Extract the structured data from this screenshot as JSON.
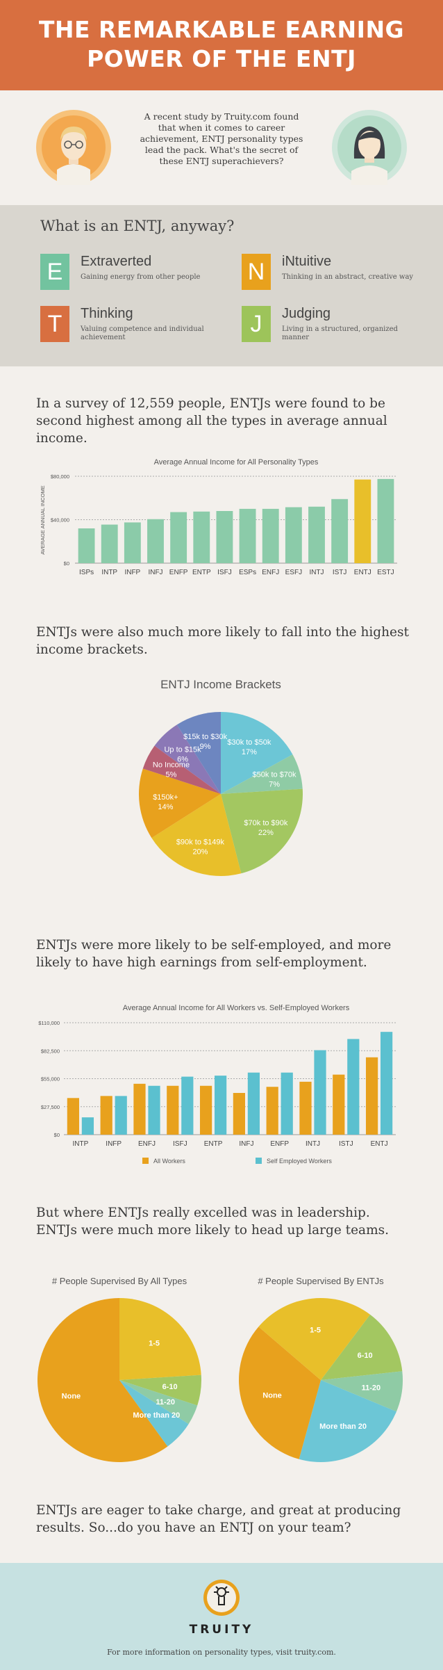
{
  "header": {
    "title": "THE REMARKABLE EARNING\nPOWER OF THE ENTJ"
  },
  "intro": {
    "text": "A recent study by Truity.com found that when it comes to career achievement, ENTJ personality types lead the pack. What's the secret of these ENTJ superachievers?"
  },
  "definition": {
    "title": "What is an ENTJ, anyway?",
    "traits": [
      {
        "letter": "E",
        "name": "Extraverted",
        "desc": "Gaining energy from other people",
        "color": "#72c39f"
      },
      {
        "letter": "N",
        "name": "iNtuitive",
        "desc": "Thinking in an abstract, creative way",
        "color": "#e8a11d"
      },
      {
        "letter": "T",
        "name": "Thinking",
        "desc": "Valuing competence and individual achievement",
        "color": "#d86f40"
      },
      {
        "letter": "J",
        "name": "Judging",
        "desc": "Living in a structured, organized manner",
        "color": "#9dc45a"
      }
    ]
  },
  "sections": {
    "survey": "In a survey of 12,559 people, ENTJs were found to be second highest among all the types in average annual income.",
    "brackets": "ENTJs were also much more likely to fall into the highest income brackets.",
    "self_employed": "ENTJs were more likely to be self-employed, and more likely to have high earnings from self-employment.",
    "leadership": "But where ENTJs really excelled was in leadership. ENTJs were much more likely to head up large teams.",
    "closing": "ENTJs are eager to take charge, and great at producing results. So...do you have an ENTJ on your team?"
  },
  "chart_data": [
    {
      "type": "bar",
      "title": "Average Annual Income for All Personality Types",
      "ylabel": "AVERAGE ANNUAL INCOME",
      "categories": [
        "ISPs",
        "INTP",
        "INFP",
        "INFJ",
        "ENFP",
        "ENTP",
        "ISFJ",
        "ESPs",
        "ENFJ",
        "ESFJ",
        "INTJ",
        "ISTJ",
        "ENTJ",
        "ESTJ"
      ],
      "values": [
        32000,
        35500,
        37500,
        40500,
        47000,
        47500,
        48000,
        50000,
        50000,
        51500,
        52000,
        59000,
        77000,
        77500
      ],
      "highlight": "ENTJ",
      "ylim": [
        0,
        80000
      ],
      "yticks": [
        "$0",
        "$40,000",
        "$80,000"
      ],
      "colors": {
        "bar": "#8bcba9",
        "highlight": "#e8bf2a"
      }
    },
    {
      "type": "pie",
      "title": "ENTJ Income Brackets",
      "slices": [
        {
          "label": "$30k to $50k",
          "pct": "17%",
          "value": 17,
          "color": "#6cc6d6"
        },
        {
          "label": "$50k to $70k",
          "pct": "7%",
          "value": 7,
          "color": "#8fcba5"
        },
        {
          "label": "$70k to $90k",
          "pct": "22%",
          "value": 22,
          "color": "#a3c761"
        },
        {
          "label": "$90k to $149k",
          "pct": "20%",
          "value": 20,
          "color": "#e8bf2a"
        },
        {
          "label": "$150k+",
          "pct": "14%",
          "value": 14,
          "color": "#e8a11d"
        },
        {
          "label": "No Income",
          "pct": "5%",
          "value": 5,
          "color": "#b75f73"
        },
        {
          "label": "Up to $15k",
          "pct": "6%",
          "value": 6,
          "color": "#8b78b6"
        },
        {
          "label": "$15k to $30k",
          "pct": "9%",
          "value": 9,
          "color": "#6d86c0"
        }
      ]
    },
    {
      "type": "bar",
      "title": "Average Annual Income for All Workers vs. Self-Employed Workers",
      "categories": [
        "INTP",
        "INFP",
        "ENFJ",
        "ISFJ",
        "ENTP",
        "INFJ",
        "ENFP",
        "INTJ",
        "ISTJ",
        "ENTJ"
      ],
      "series": [
        {
          "name": "All Workers",
          "values": [
            36000,
            38000,
            50000,
            48000,
            48000,
            41000,
            47000,
            52000,
            59000,
            76000
          ],
          "color": "#e8a11d"
        },
        {
          "name": "Self Employed Workers",
          "values": [
            17000,
            38000,
            48000,
            57000,
            58000,
            61000,
            61000,
            83000,
            94000,
            101000
          ],
          "color": "#5bc0cf"
        }
      ],
      "ylim": [
        0,
        110000
      ],
      "yticks": [
        "$0",
        "$27,500",
        "$55,000",
        "$82,500",
        "$110,000"
      ]
    },
    {
      "type": "pie",
      "title": "# People Supervised By All Types",
      "slices": [
        {
          "label": "1-5",
          "value": 24,
          "color": "#e8bf2a"
        },
        {
          "label": "6-10",
          "value": 6,
          "color": "#a3c761"
        },
        {
          "label": "11-20",
          "value": 4,
          "color": "#8fcba5"
        },
        {
          "label": "More than 20",
          "value": 6,
          "color": "#6cc6d6"
        },
        {
          "label": "None",
          "value": 60,
          "color": "#e8a11d"
        }
      ]
    },
    {
      "type": "pie",
      "title": "# People Supervised By ENTJs",
      "slices": [
        {
          "label": "6-10",
          "value": 13,
          "color": "#a3c761"
        },
        {
          "label": "11-20",
          "value": 8,
          "color": "#8fcba5"
        },
        {
          "label": "More than 20",
          "value": 23,
          "color": "#6cc6d6"
        },
        {
          "label": "None",
          "value": 32,
          "color": "#e8a11d"
        },
        {
          "label": "1-5",
          "value": 24,
          "color": "#e8bf2a"
        }
      ]
    }
  ],
  "footer": {
    "logo": "TRUITY",
    "text": "For more information on personality types, visit truity.com."
  }
}
